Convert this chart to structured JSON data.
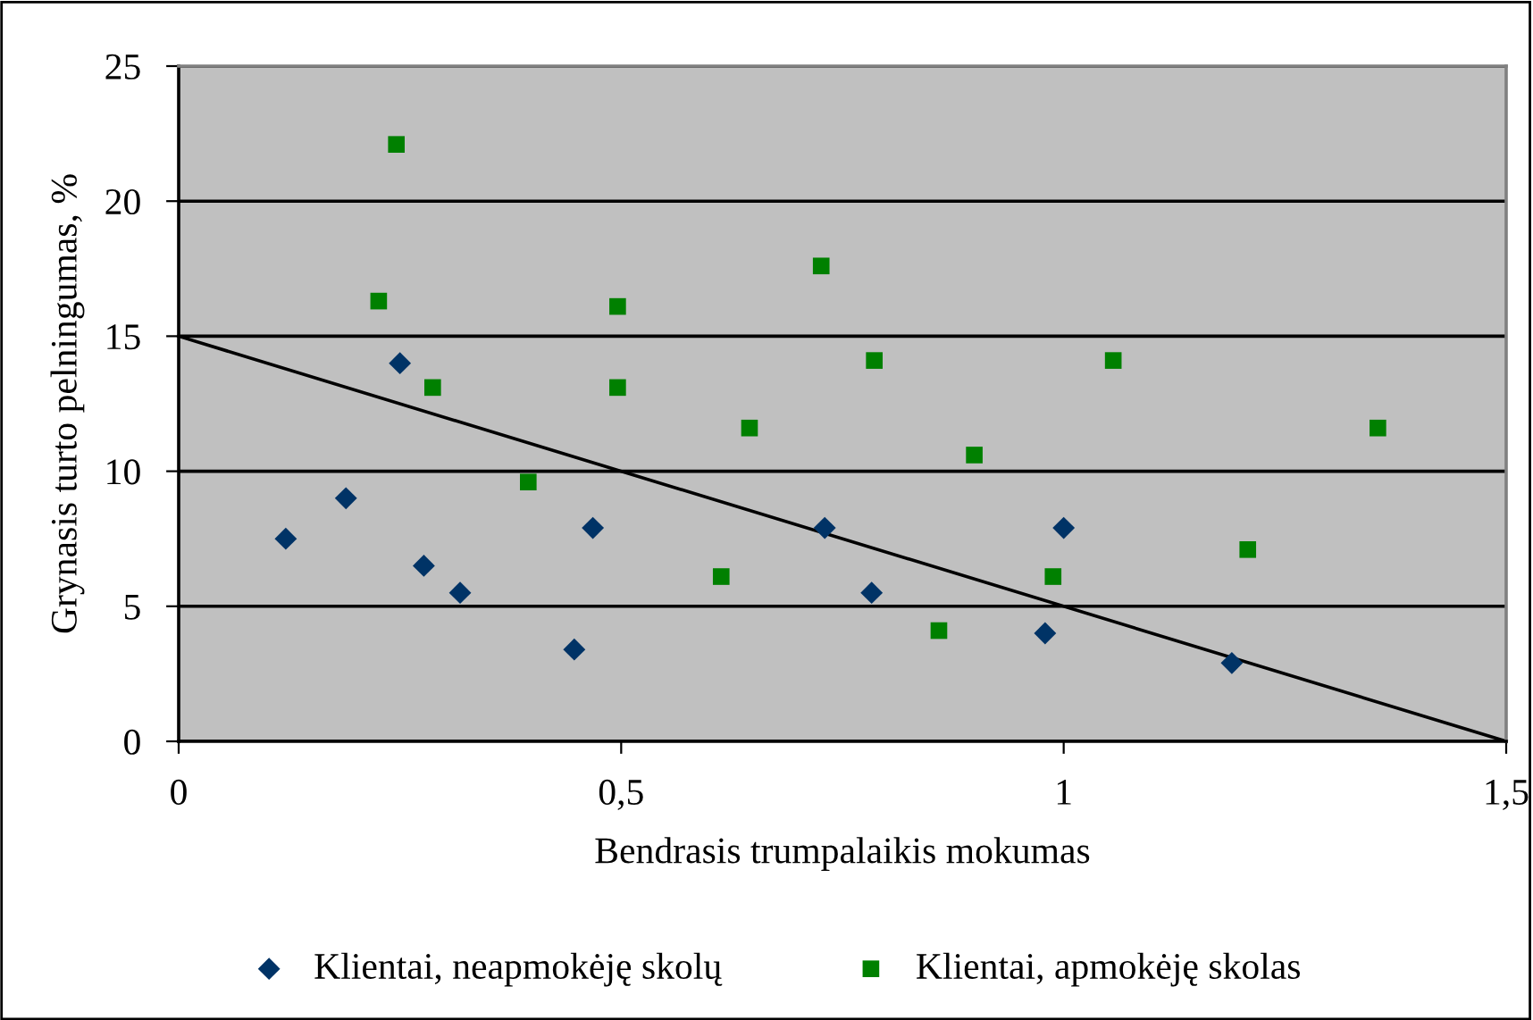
{
  "chart_data": {
    "type": "scatter",
    "xlabel": "Bendrasis trumpalaikis mokumas",
    "ylabel": "Grynasis turto pelningumas, %",
    "xlim": [
      0,
      1.5
    ],
    "xticks": [
      {
        "value": 0,
        "label": "0"
      },
      {
        "value": 0.5,
        "label": "0,5"
      },
      {
        "value": 1,
        "label": "1"
      },
      {
        "value": 1.5,
        "label": "1,5"
      }
    ],
    "ylim": [
      0,
      25
    ],
    "yticks": [
      0,
      5,
      10,
      15,
      20,
      25
    ],
    "grid": "y",
    "legend": "bottom",
    "series": [
      {
        "name": "Klientai, neapmokėję skolų",
        "color": "#003366",
        "marker": "diamond",
        "x": [
          0.121,
          0.189,
          0.25,
          0.277,
          0.318,
          0.447,
          0.468,
          0.73,
          0.783,
          0.979,
          1.0,
          1.19
        ],
        "values": [
          7.5,
          9.0,
          14.0,
          6.5,
          5.5,
          3.4,
          7.9,
          7.9,
          5.5,
          4.0,
          7.9,
          2.9
        ]
      },
      {
        "name": "Klientai, apmokėję skolas",
        "color": "#008000",
        "marker": "square",
        "x": [
          0.226,
          0.246,
          0.287,
          0.395,
          0.496,
          0.496,
          0.613,
          0.645,
          0.726,
          0.786,
          0.859,
          0.899,
          0.988,
          1.056,
          1.208,
          1.355
        ],
        "values": [
          16.3,
          22.1,
          13.1,
          9.6,
          16.1,
          13.1,
          6.1,
          11.6,
          17.6,
          14.1,
          4.1,
          10.6,
          6.1,
          14.1,
          7.1,
          11.6
        ]
      },
      {
        "type": "line",
        "color": "#000000",
        "marker": "none",
        "x": [
          0,
          1.5
        ],
        "values": [
          15,
          0
        ]
      }
    ]
  }
}
